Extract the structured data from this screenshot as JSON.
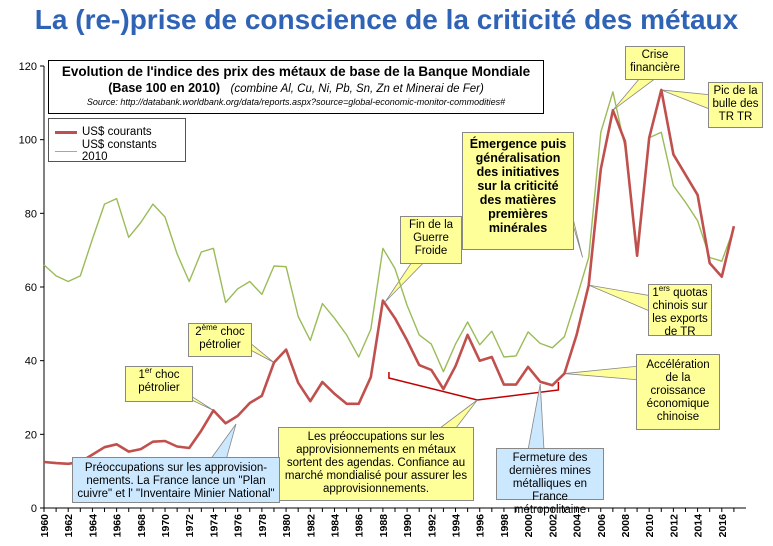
{
  "main_title": "La (re-)prise de conscience de la criticité des métaux",
  "subtitle": {
    "line1": "Evolution de l'indice des prix des métaux de base de la Banque Mondiale",
    "line2_bold": "(Base 100 en 2010)",
    "line2_italic": "(combine Al, Cu, Ni, Pb, Sn, Zn et Minerai de Fer)",
    "line3": "Source: http://databank.worldbank.org/data/reports.aspx?source=global-economic-monitor-commodities#"
  },
  "annotations": {
    "choc1_sup": "er",
    "choc1_text": "choc pétrolier",
    "choc2_sup": "ème",
    "choc2_word": "choc",
    "choc2_text": "pétrolier",
    "fin_guerre": "Fin de la Guerre Froide",
    "emergence": "Émergence puis généralisation des initiatives sur la criticité des matières premières minérales",
    "crise": "Crise financière",
    "pic": "Pic de la bulle des TR TR",
    "quotas_sup": "ers",
    "quotas_text": "quotas chinois sur les exports de TR",
    "acceleration": "Accélération de la croissance économique chinoise",
    "preoccupations_agendas": "Les préoccupations sur les approvisionnements en métaux sortent des agendas. Confiance au marché mondialisé pour assurer les approvisionnements.",
    "preoccupations_france": "Préoccupations sur les approvision-nements. La France lance un \"Plan cuivre\" et l' \"Inventaire Minier National\"",
    "fermeture": "Fermeture des dernières mines métalliques en France métropolitaine"
  },
  "colors": {
    "current": "#c0504d",
    "constant": "#9bbb59",
    "title": "#2f63b6",
    "annotation_yellow": "#ffff99",
    "annotation_blue": "#cce8ff",
    "axis": "#000000",
    "bracket": "#c00000"
  },
  "chart_data": {
    "type": "line",
    "title": "Evolution de l'indice des prix des métaux de base de la Banque Mondiale",
    "xlabel": "",
    "ylabel": "",
    "xlim": [
      1960,
      2017
    ],
    "ylim": [
      0,
      120
    ],
    "yticks": [
      0,
      20,
      40,
      60,
      80,
      100,
      120
    ],
    "xticks": [
      1960,
      1962,
      1964,
      1966,
      1968,
      1970,
      1972,
      1974,
      1976,
      1978,
      1980,
      1982,
      1984,
      1986,
      1988,
      1990,
      1992,
      1994,
      1996,
      1998,
      2000,
      2002,
      2004,
      2006,
      2008,
      2010,
      2012,
      2014,
      2016
    ],
    "grid": false,
    "legend_position": "top-left",
    "x": [
      1960,
      1961,
      1962,
      1963,
      1964,
      1965,
      1966,
      1967,
      1968,
      1969,
      1970,
      1971,
      1972,
      1973,
      1974,
      1975,
      1976,
      1977,
      1978,
      1979,
      1980,
      1981,
      1982,
      1983,
      1984,
      1985,
      1986,
      1987,
      1988,
      1989,
      1990,
      1991,
      1992,
      1993,
      1994,
      1995,
      1996,
      1997,
      1998,
      1999,
      2000,
      2001,
      2002,
      2003,
      2004,
      2005,
      2006,
      2007,
      2008,
      2009,
      2010,
      2011,
      2012,
      2013,
      2014,
      2015,
      2016,
      2017
    ],
    "series": [
      {
        "name": "US$ courants",
        "values": [
          12.5,
          12.2,
          12.0,
          12.5,
          14.5,
          16.5,
          17.3,
          15.3,
          16.0,
          18.0,
          18.2,
          16.7,
          16.3,
          21.0,
          26.5,
          23.0,
          25.0,
          28.5,
          30.5,
          39.5,
          43.0,
          34.0,
          29.0,
          34.2,
          31.0,
          28.3,
          28.3,
          35.5,
          56.3,
          51.5,
          45.5,
          38.8,
          37.5,
          32.3,
          38.5,
          47.0,
          40.0,
          41.0,
          33.5,
          33.5,
          38.3,
          34.3,
          33.3,
          36.5,
          47.0,
          60.5,
          92.0,
          108.0,
          99.5,
          68.5,
          100.5,
          113.5,
          96.0,
          90.5,
          85.0,
          66.5,
          62.8,
          76.5
        ]
      },
      {
        "name": "US$ constants 2010",
        "values": [
          66.0,
          63.0,
          61.5,
          63.0,
          73.0,
          82.5,
          84.0,
          73.5,
          77.5,
          82.5,
          79.0,
          69.0,
          61.5,
          69.5,
          70.5,
          55.8,
          59.5,
          61.5,
          58.0,
          65.7,
          65.5,
          52.0,
          45.5,
          55.5,
          51.5,
          47.0,
          41.0,
          48.5,
          70.5,
          65.0,
          55.0,
          47.0,
          44.5,
          37.0,
          44.5,
          50.5,
          44.3,
          48.0,
          41.0,
          41.3,
          47.8,
          44.7,
          43.5,
          46.5,
          57.0,
          68.0,
          102.0,
          113.0,
          98.0,
          70.0,
          100.5,
          102.0,
          87.5,
          83.0,
          78.0,
          68.0,
          67.0,
          76.0
        ]
      }
    ]
  }
}
